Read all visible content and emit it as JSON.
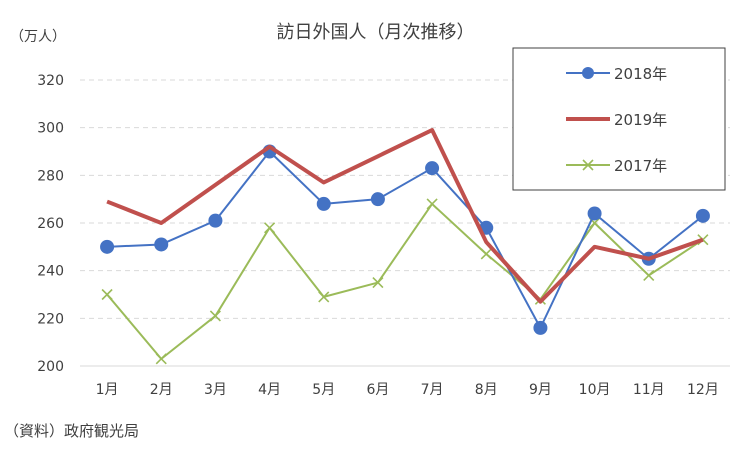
{
  "chart_data": {
    "type": "line",
    "title": "訪日外国人（月次推移）",
    "ylabel": "（万人）",
    "xlabel": "",
    "ylim": [
      200,
      320
    ],
    "yticks": [
      200,
      220,
      240,
      260,
      280,
      300,
      320
    ],
    "categories": [
      "1月",
      "2月",
      "3月",
      "4月",
      "5月",
      "6月",
      "7月",
      "8月",
      "9月",
      "10月",
      "11月",
      "12月"
    ],
    "grid": "horizontal dashed",
    "legend_position": "top-right",
    "series": [
      {
        "name": "2018年",
        "values": [
          250,
          251,
          261,
          290,
          268,
          270,
          283,
          258,
          216,
          264,
          245,
          263
        ],
        "color": "#4472C4",
        "marker": "circle"
      },
      {
        "name": "2019年",
        "values": [
          269,
          260,
          276,
          292,
          277,
          288,
          299,
          252,
          227,
          250,
          245,
          253
        ],
        "color": "#C0504D",
        "marker": "none"
      },
      {
        "name": "2017年",
        "values": [
          230,
          203,
          221,
          258,
          229,
          235,
          268,
          247,
          228,
          260,
          238,
          253
        ],
        "color": "#9BBB59",
        "marker": "x"
      }
    ]
  },
  "source_note": "（資料）政府観光局"
}
